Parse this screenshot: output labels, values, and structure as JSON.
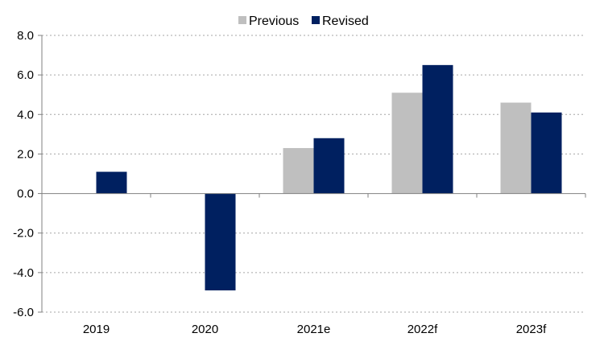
{
  "chart_data": {
    "type": "bar",
    "categories": [
      "2019",
      "2020",
      "2021e",
      "2022f",
      "2023f"
    ],
    "series": [
      {
        "name": "Previous",
        "color": "#bfbfbf",
        "values": [
          null,
          null,
          2.3,
          5.1,
          4.6
        ]
      },
      {
        "name": "Revised",
        "color": "#002060",
        "values": [
          1.1,
          -4.9,
          2.8,
          6.5,
          4.1
        ]
      }
    ],
    "ylim": [
      -6.0,
      8.0
    ],
    "yticks": [
      "8.0",
      "6.0",
      "4.0",
      "2.0",
      "0.0",
      "-2.0",
      "-4.0",
      "-6.0"
    ],
    "ytick_values": [
      8,
      6,
      4,
      2,
      0,
      -2,
      -4,
      -6
    ],
    "grid": true,
    "legend_position": "top-center"
  }
}
